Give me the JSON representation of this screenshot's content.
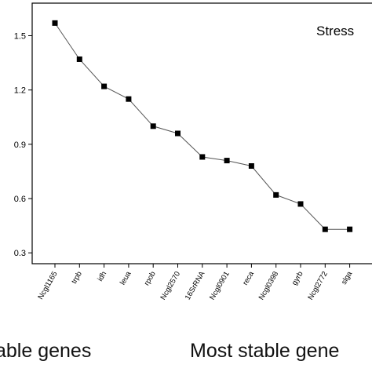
{
  "chart_data": {
    "type": "line",
    "title": "",
    "xlabel": "",
    "ylabel": "",
    "annotation": "Stress",
    "categories": [
      "Ncgl1165",
      "trpb",
      "idh",
      "leua",
      "rpob",
      "Ncgl2570",
      "16SrRNA",
      "Ncgl0901",
      "reca",
      "Ncgl0398",
      "gyrb",
      "Ncgl2772",
      "slga"
    ],
    "series": [
      {
        "values": [
          1.57,
          1.37,
          1.22,
          1.15,
          1.0,
          0.96,
          0.83,
          0.81,
          0.78,
          0.62,
          0.57,
          0.43,
          0.43
        ]
      }
    ],
    "ylim": [
      0.24,
      1.68
    ],
    "yticks": [
      "0.3",
      "0.6",
      "0.9",
      "1.2",
      "1.5"
    ],
    "ytick_values": [
      0.3,
      0.6,
      0.9,
      1.2,
      1.5
    ],
    "grid": false,
    "legend": "none",
    "colors": {
      "line": "#555555",
      "marker": "#000000",
      "axis": "#000000"
    }
  },
  "footer": {
    "left_text": "able genes",
    "right_text": "Most stable gene"
  }
}
